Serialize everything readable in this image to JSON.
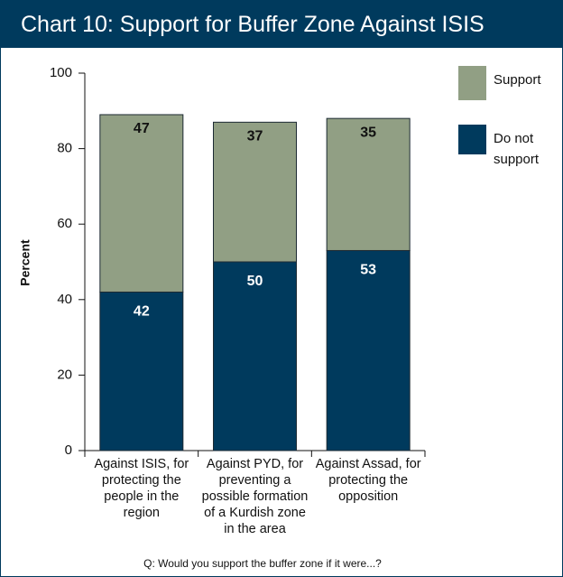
{
  "chart_data": {
    "type": "stacked_bar",
    "title": "Chart 10: Support for Buffer Zone Against ISIS",
    "y_label": "Percent",
    "note": "Q: Would you support the buffer zone if it were...?",
    "categories": [
      "Against ISIS, for protecting the people in the region",
      "Against PYD, for preventing a possible formation of a Kurdish zone in the area",
      "Against Assad, for protecting the opposition"
    ],
    "series": [
      {
        "name": "Do not support",
        "color": "#003a5d",
        "values": [
          42,
          50,
          53
        ]
      },
      {
        "name": "Support",
        "color": "#919f84",
        "values": [
          47,
          37,
          35
        ]
      }
    ],
    "ylim": [
      0,
      100
    ],
    "yticks": [
      0,
      20,
      40,
      60,
      80,
      100
    ]
  }
}
